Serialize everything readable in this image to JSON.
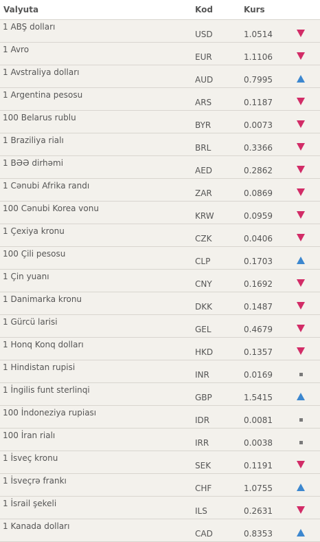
{
  "header": {
    "currency": "Valyuta",
    "code": "Kod",
    "rate": "Kurs"
  },
  "rows": [
    {
      "name": "1 ABŞ dolları",
      "code": "USD",
      "rate": "1.0514",
      "trend": "down"
    },
    {
      "name": "1 Avro",
      "code": "EUR",
      "rate": "1.1106",
      "trend": "down"
    },
    {
      "name": "1 Avstraliya dolları",
      "code": "AUD",
      "rate": "0.7995",
      "trend": "up"
    },
    {
      "name": "1 Argentina pesosu",
      "code": "ARS",
      "rate": "0.1187",
      "trend": "down"
    },
    {
      "name": "100 Belarus rublu",
      "code": "BYR",
      "rate": "0.0073",
      "trend": "down"
    },
    {
      "name": "1 Braziliya rialı",
      "code": "BRL",
      "rate": "0.3366",
      "trend": "down"
    },
    {
      "name": "1 BƏƏ dirhəmi",
      "code": "AED",
      "rate": "0.2862",
      "trend": "down"
    },
    {
      "name": "1 Cənubi Afrika randı",
      "code": "ZAR",
      "rate": "0.0869",
      "trend": "down"
    },
    {
      "name": "100 Cənubi Korea vonu",
      "code": "KRW",
      "rate": "0.0959",
      "trend": "down"
    },
    {
      "name": "1 Çexiya kronu",
      "code": "CZK",
      "rate": "0.0406",
      "trend": "down"
    },
    {
      "name": "100 Çili pesosu",
      "code": "CLP",
      "rate": "0.1703",
      "trend": "up"
    },
    {
      "name": "1 Çin yuanı",
      "code": "CNY",
      "rate": "0.1692",
      "trend": "down"
    },
    {
      "name": "1 Danimarka kronu",
      "code": "DKK",
      "rate": "0.1487",
      "trend": "down"
    },
    {
      "name": "1 Gürcü larisi",
      "code": "GEL",
      "rate": "0.4679",
      "trend": "down"
    },
    {
      "name": "1 Honq Konq dolları",
      "code": "HKD",
      "rate": "0.1357",
      "trend": "down"
    },
    {
      "name": "1 Hindistan rupisi",
      "code": "INR",
      "rate": "0.0169",
      "trend": "same"
    },
    {
      "name": "1 İngilis funt sterlinqi",
      "code": "GBP",
      "rate": "1.5415",
      "trend": "up"
    },
    {
      "name": "100 İndoneziya rupiası",
      "code": "IDR",
      "rate": "0.0081",
      "trend": "same"
    },
    {
      "name": "100 İran rialı",
      "code": "IRR",
      "rate": "0.0038",
      "trend": "same"
    },
    {
      "name": "1 İsveç kronu",
      "code": "SEK",
      "rate": "0.1191",
      "trend": "down"
    },
    {
      "name": "1 İsveçrə frankı",
      "code": "CHF",
      "rate": "1.0755",
      "trend": "up"
    },
    {
      "name": "1 İsrail şekeli",
      "code": "ILS",
      "rate": "0.2631",
      "trend": "down"
    },
    {
      "name": "1 Kanada dolları",
      "code": "CAD",
      "rate": "0.8353",
      "trend": "up"
    }
  ],
  "colors": {
    "down": "#d22c67",
    "up": "#3c87cf",
    "same": "#7a7a7a"
  },
  "icons": {
    "down": "arrow-down-icon",
    "up": "arrow-up-icon",
    "same": "unchanged-icon"
  }
}
